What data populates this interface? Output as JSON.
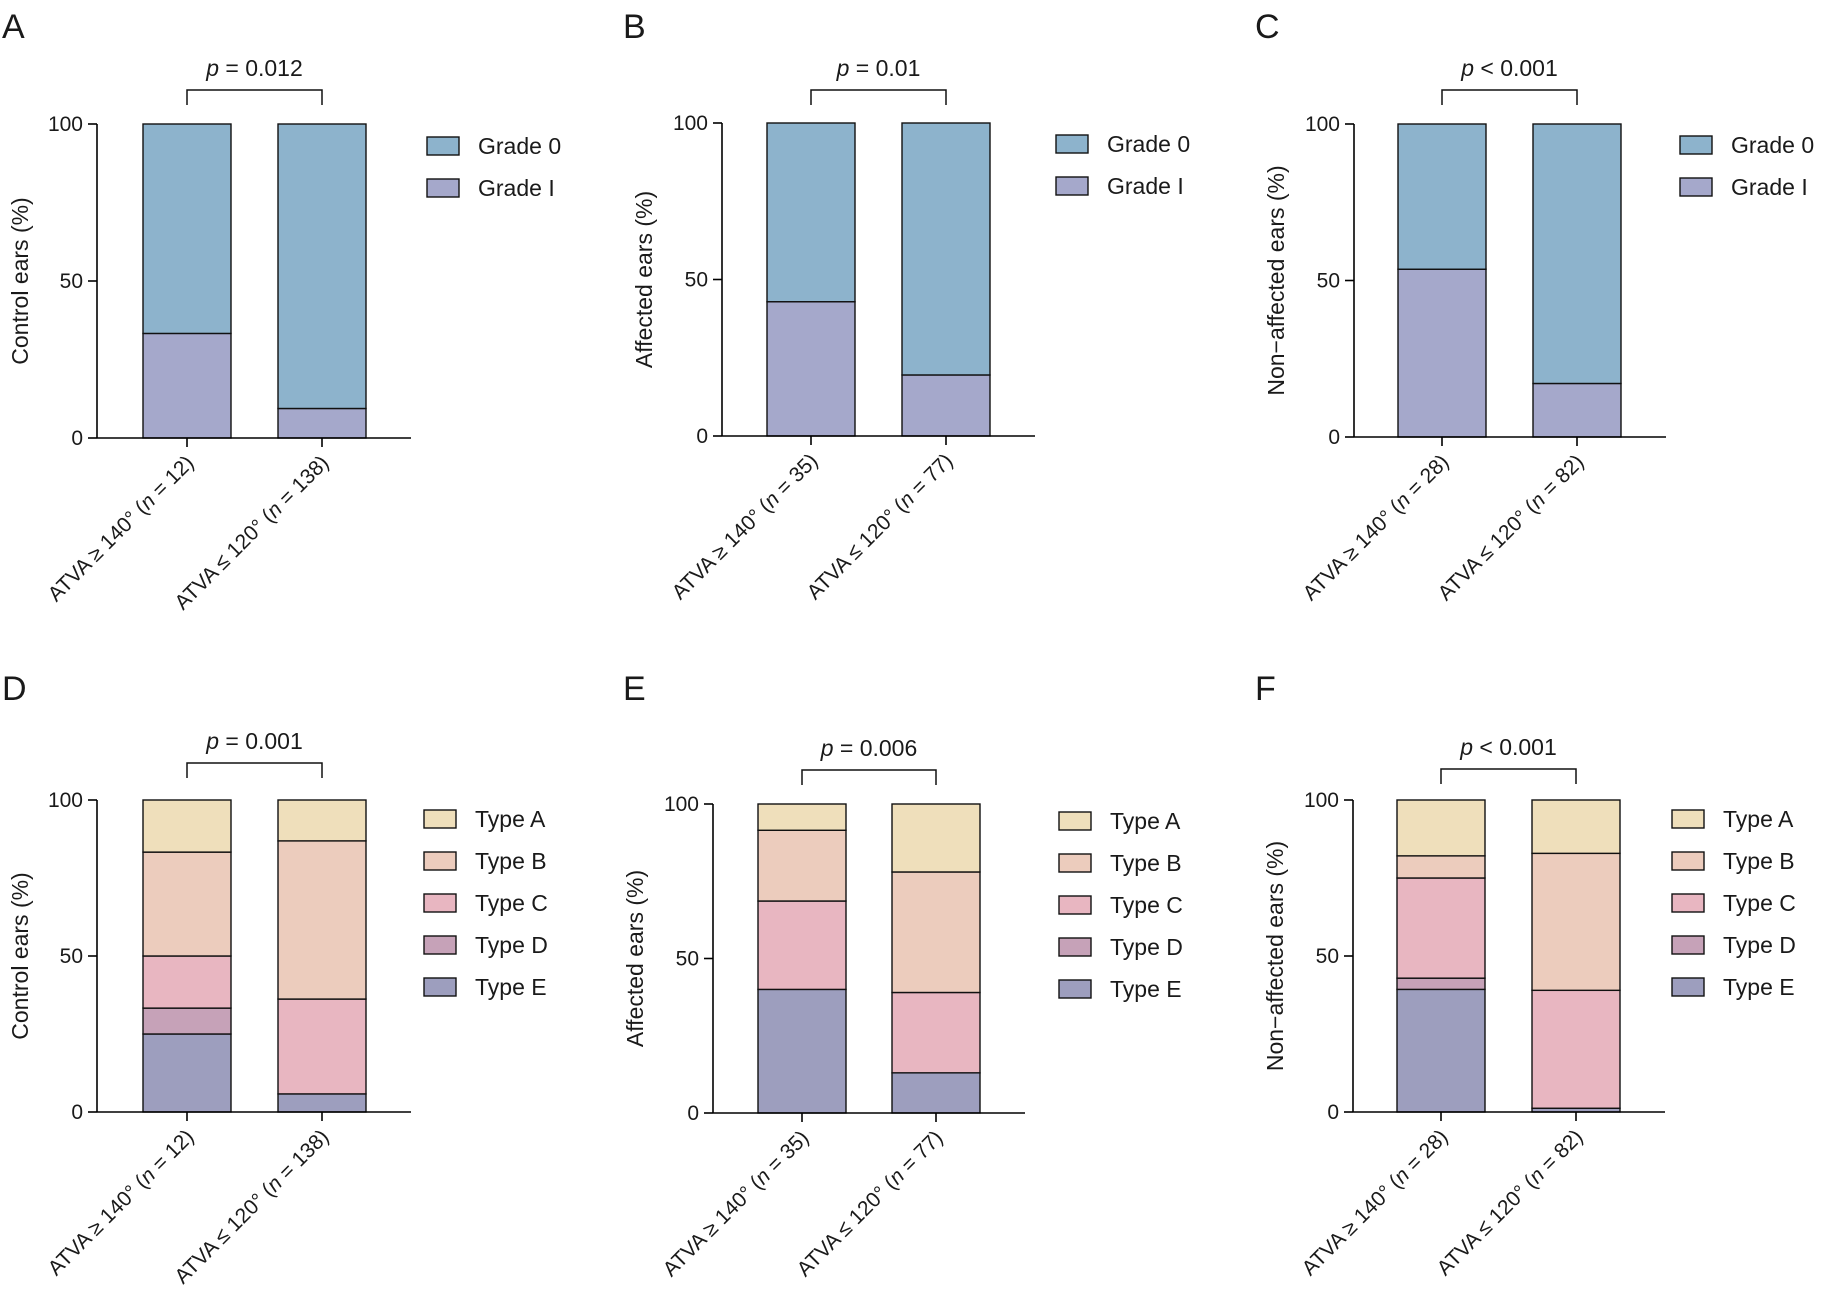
{
  "colors": {
    "grade_0": "#8db3cc",
    "grade_1": "#a5a8cb",
    "type_a": "#efdfbb",
    "type_b": "#ecccbd",
    "type_c": "#e8b6c1",
    "type_d": "#c6a2b8",
    "type_e": "#9d9ebe"
  },
  "chart_data": [
    {
      "panel": "A",
      "type": "bar",
      "stacked": true,
      "layout": "grade",
      "ylabel": "Control ears (%)",
      "ylim": [
        0,
        100
      ],
      "yticks": [
        0,
        50,
        100
      ],
      "p_value": "= 0.012",
      "categories": [
        {
          "label_pre": "ATVA ≥ 140° (",
          "n_label": "n",
          "label_post": " = 12)"
        },
        {
          "label_pre": "ATVA ≤ 120° (",
          "n_label": "n",
          "label_post": " = 138)"
        }
      ],
      "series": [
        {
          "name": "Grade I",
          "color_key": "grade_1",
          "values": [
            33.3,
            9.4
          ]
        },
        {
          "name": "Grade 0",
          "color_key": "grade_0",
          "values": [
            66.7,
            90.6
          ]
        }
      ],
      "legend": [
        "Grade 0",
        "Grade I"
      ]
    },
    {
      "panel": "B",
      "type": "bar",
      "stacked": true,
      "layout": "grade",
      "ylabel": "Affected ears (%)",
      "ylim": [
        0,
        100
      ],
      "yticks": [
        0,
        50,
        100
      ],
      "p_value": "= 0.01",
      "categories": [
        {
          "label_pre": "ATVA ≥ 140° (",
          "n_label": "n",
          "label_post": " = 35)"
        },
        {
          "label_pre": "ATVA ≤ 120° (",
          "n_label": "n",
          "label_post": " = 77)"
        }
      ],
      "series": [
        {
          "name": "Grade I",
          "color_key": "grade_1",
          "values": [
            42.9,
            19.5
          ]
        },
        {
          "name": "Grade 0",
          "color_key": "grade_0",
          "values": [
            57.1,
            80.5
          ]
        }
      ],
      "legend": [
        "Grade 0",
        "Grade I"
      ]
    },
    {
      "panel": "C",
      "type": "bar",
      "stacked": true,
      "layout": "grade",
      "ylabel": "Non−affected ears (%)",
      "ylim": [
        0,
        100
      ],
      "yticks": [
        0,
        50,
        100
      ],
      "p_value": "< 0.001",
      "categories": [
        {
          "label_pre": "ATVA ≥ 140° (",
          "n_label": "n",
          "label_post": " = 28)"
        },
        {
          "label_pre": "ATVA ≤ 120° (",
          "n_label": "n",
          "label_post": " = 82)"
        }
      ],
      "series": [
        {
          "name": "Grade I",
          "color_key": "grade_1",
          "values": [
            53.6,
            17.1
          ]
        },
        {
          "name": "Grade 0",
          "color_key": "grade_0",
          "values": [
            46.4,
            82.9
          ]
        }
      ],
      "legend": [
        "Grade 0",
        "Grade I"
      ]
    },
    {
      "panel": "D",
      "type": "bar",
      "stacked": true,
      "layout": "type",
      "ylabel": "Control ears (%)",
      "ylim": [
        0,
        100
      ],
      "yticks": [
        0,
        50,
        100
      ],
      "p_value": "= 0.001",
      "categories": [
        {
          "label_pre": "ATVA ≥ 140° (",
          "n_label": "n",
          "label_post": " = 12)"
        },
        {
          "label_pre": "ATVA ≤ 120° (",
          "n_label": "n",
          "label_post": " = 138)"
        }
      ],
      "series": [
        {
          "name": "Type E",
          "color_key": "type_e",
          "values": [
            25.0,
            5.8
          ]
        },
        {
          "name": "Type D",
          "color_key": "type_d",
          "values": [
            8.3,
            0.0
          ]
        },
        {
          "name": "Type C",
          "color_key": "type_c",
          "values": [
            16.7,
            30.4
          ]
        },
        {
          "name": "Type B",
          "color_key": "type_b",
          "values": [
            33.3,
            50.7
          ]
        },
        {
          "name": "Type A",
          "color_key": "type_a",
          "values": [
            16.7,
            13.1
          ]
        }
      ],
      "legend": [
        "Type A",
        "Type B",
        "Type C",
        "Type D",
        "Type E"
      ]
    },
    {
      "panel": "E",
      "type": "bar",
      "stacked": true,
      "layout": "type",
      "ylabel": "Affected ears (%)",
      "ylim": [
        0,
        100
      ],
      "yticks": [
        0,
        50,
        100
      ],
      "p_value": "= 0.006",
      "categories": [
        {
          "label_pre": "ATVA ≥ 140° (",
          "n_label": "n",
          "label_post": " = 35)"
        },
        {
          "label_pre": "ATVA ≤ 120° (",
          "n_label": "n",
          "label_post": " = 77)"
        }
      ],
      "series": [
        {
          "name": "Type E",
          "color_key": "type_e",
          "values": [
            40.0,
            13.0
          ]
        },
        {
          "name": "Type D",
          "color_key": "type_d",
          "values": [
            0.0,
            0.0
          ]
        },
        {
          "name": "Type C",
          "color_key": "type_c",
          "values": [
            28.6,
            26.0
          ]
        },
        {
          "name": "Type B",
          "color_key": "type_b",
          "values": [
            22.9,
            39.0
          ]
        },
        {
          "name": "Type A",
          "color_key": "type_a",
          "values": [
            8.5,
            22.0
          ]
        }
      ],
      "legend": [
        "Type A",
        "Type B",
        "Type C",
        "Type D",
        "Type E"
      ]
    },
    {
      "panel": "F",
      "type": "bar",
      "stacked": true,
      "layout": "type",
      "ylabel": "Non−affected ears (%)",
      "ylim": [
        0,
        100
      ],
      "yticks": [
        0,
        50,
        100
      ],
      "p_value": "< 0.001",
      "categories": [
        {
          "label_pre": "ATVA ≥ 140° (",
          "n_label": "n",
          "label_post": " = 28)"
        },
        {
          "label_pre": "ATVA ≤ 120° (",
          "n_label": "n",
          "label_post": " = 82)"
        }
      ],
      "series": [
        {
          "name": "Type E",
          "color_key": "type_e",
          "values": [
            39.3,
            1.2
          ]
        },
        {
          "name": "Type D",
          "color_key": "type_d",
          "values": [
            3.6,
            0.0
          ]
        },
        {
          "name": "Type C",
          "color_key": "type_c",
          "values": [
            32.1,
            37.8
          ]
        },
        {
          "name": "Type B",
          "color_key": "type_b",
          "values": [
            7.1,
            43.9
          ]
        },
        {
          "name": "Type A",
          "color_key": "type_a",
          "values": [
            17.9,
            17.1
          ]
        }
      ],
      "legend": [
        "Type A",
        "Type B",
        "Type C",
        "Type D",
        "Type E"
      ]
    }
  ]
}
